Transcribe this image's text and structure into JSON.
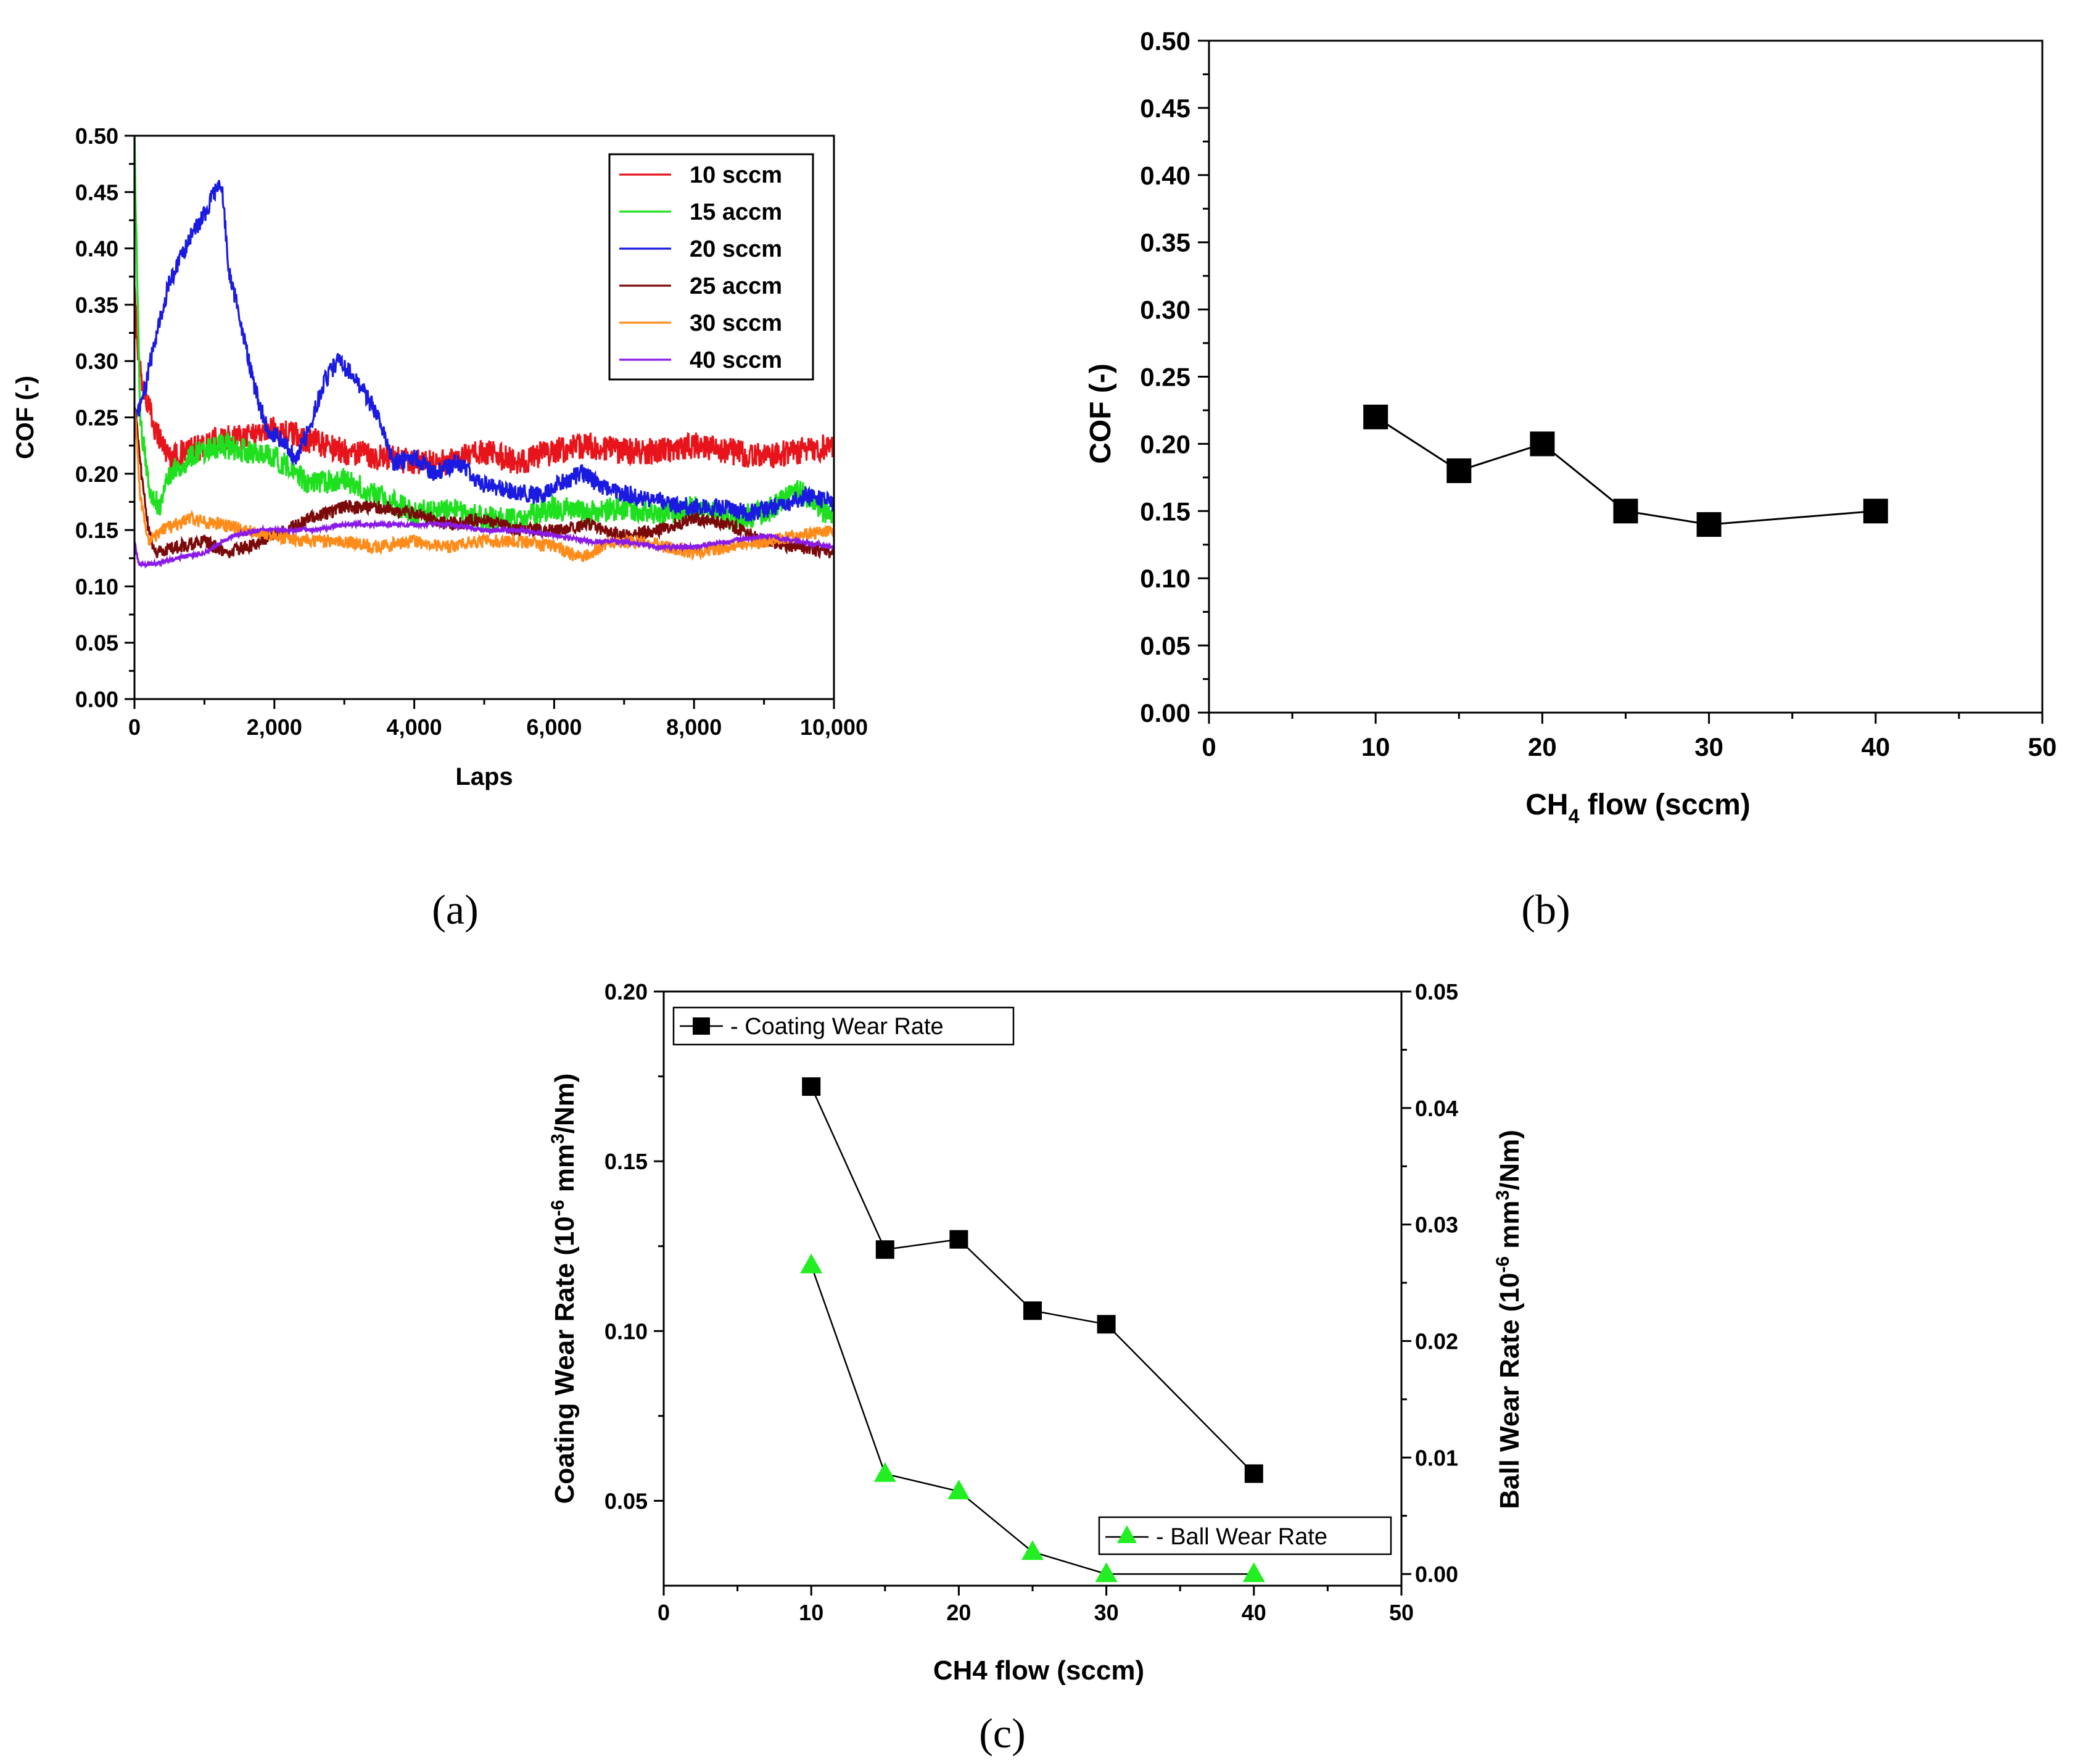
{
  "chart_data": [
    {
      "id": "a",
      "type": "line",
      "panel_label": "(a)",
      "xlabel": "Laps",
      "ylabel": "COF (-)",
      "xlim": [
        0,
        10000
      ],
      "ylim": [
        0,
        0.5
      ],
      "xticks": [
        "0",
        "2,000",
        "4,000",
        "6,000",
        "8,000",
        "10,000"
      ],
      "yticks": [
        "0.00",
        "0.05",
        "0.10",
        "0.15",
        "0.20",
        "0.25",
        "0.30",
        "0.35",
        "0.40",
        "0.45",
        "0.50"
      ],
      "legend_position": "top-right",
      "series": [
        {
          "name": "10 sccm",
          "color": "#e8141b",
          "noise": 0.012,
          "points": [
            [
              0,
              0.36
            ],
            [
              60,
              0.3
            ],
            [
              150,
              0.27
            ],
            [
              300,
              0.24
            ],
            [
              500,
              0.215
            ],
            [
              800,
              0.22
            ],
            [
              1200,
              0.23
            ],
            [
              1600,
              0.235
            ],
            [
              2000,
              0.24
            ],
            [
              2500,
              0.23
            ],
            [
              3000,
              0.22
            ],
            [
              3500,
              0.215
            ],
            [
              4000,
              0.21
            ],
            [
              4500,
              0.21
            ],
            [
              5000,
              0.22
            ],
            [
              5500,
              0.21
            ],
            [
              6000,
              0.22
            ],
            [
              6500,
              0.225
            ],
            [
              7000,
              0.22
            ],
            [
              7500,
              0.22
            ],
            [
              8000,
              0.225
            ],
            [
              8500,
              0.22
            ],
            [
              9000,
              0.215
            ],
            [
              9500,
              0.22
            ],
            [
              10000,
              0.225
            ]
          ]
        },
        {
          "name": "15 accm",
          "color": "#1ee01e",
          "noise": 0.011,
          "points": [
            [
              0,
              0.5
            ],
            [
              30,
              0.4
            ],
            [
              80,
              0.25
            ],
            [
              200,
              0.19
            ],
            [
              350,
              0.17
            ],
            [
              500,
              0.2
            ],
            [
              800,
              0.215
            ],
            [
              1200,
              0.225
            ],
            [
              1600,
              0.22
            ],
            [
              2000,
              0.215
            ],
            [
              2500,
              0.19
            ],
            [
              3000,
              0.195
            ],
            [
              3500,
              0.18
            ],
            [
              4000,
              0.165
            ],
            [
              4500,
              0.17
            ],
            [
              5000,
              0.16
            ],
            [
              5500,
              0.16
            ],
            [
              6000,
              0.17
            ],
            [
              6500,
              0.165
            ],
            [
              7000,
              0.17
            ],
            [
              7500,
              0.165
            ],
            [
              8000,
              0.17
            ],
            [
              8500,
              0.16
            ],
            [
              9000,
              0.165
            ],
            [
              9500,
              0.185
            ],
            [
              10000,
              0.16
            ]
          ]
        },
        {
          "name": "20 sccm",
          "color": "#1a1ae0",
          "noise": 0.008,
          "points": [
            [
              0,
              0.25
            ],
            [
              100,
              0.26
            ],
            [
              300,
              0.32
            ],
            [
              500,
              0.37
            ],
            [
              800,
              0.41
            ],
            [
              1000,
              0.43
            ],
            [
              1150,
              0.45
            ],
            [
              1250,
              0.455
            ],
            [
              1350,
              0.38
            ],
            [
              1500,
              0.34
            ],
            [
              1700,
              0.28
            ],
            [
              1900,
              0.24
            ],
            [
              2100,
              0.23
            ],
            [
              2300,
              0.215
            ],
            [
              2500,
              0.24
            ],
            [
              2700,
              0.28
            ],
            [
              2900,
              0.3
            ],
            [
              3100,
              0.29
            ],
            [
              3300,
              0.27
            ],
            [
              3500,
              0.25
            ],
            [
              3700,
              0.21
            ],
            [
              4000,
              0.215
            ],
            [
              4300,
              0.2
            ],
            [
              4600,
              0.21
            ],
            [
              5000,
              0.19
            ],
            [
              5400,
              0.185
            ],
            [
              5800,
              0.18
            ],
            [
              6000,
              0.19
            ],
            [
              6400,
              0.2
            ],
            [
              6800,
              0.185
            ],
            [
              7200,
              0.18
            ],
            [
              7600,
              0.175
            ],
            [
              8000,
              0.17
            ],
            [
              8400,
              0.17
            ],
            [
              8800,
              0.165
            ],
            [
              9200,
              0.17
            ],
            [
              9600,
              0.18
            ],
            [
              10000,
              0.175
            ]
          ]
        },
        {
          "name": "25 accm",
          "color": "#7a0a0a",
          "noise": 0.006,
          "points": [
            [
              0,
              0.26
            ],
            [
              100,
              0.2
            ],
            [
              200,
              0.15
            ],
            [
              300,
              0.13
            ],
            [
              600,
              0.135
            ],
            [
              1000,
              0.14
            ],
            [
              1300,
              0.13
            ],
            [
              1600,
              0.135
            ],
            [
              2000,
              0.145
            ],
            [
              2500,
              0.16
            ],
            [
              3000,
              0.17
            ],
            [
              3500,
              0.17
            ],
            [
              4000,
              0.165
            ],
            [
              4500,
              0.155
            ],
            [
              5000,
              0.16
            ],
            [
              5500,
              0.15
            ],
            [
              6000,
              0.15
            ],
            [
              6500,
              0.155
            ],
            [
              7000,
              0.145
            ],
            [
              7500,
              0.15
            ],
            [
              8000,
              0.16
            ],
            [
              8500,
              0.155
            ],
            [
              9000,
              0.14
            ],
            [
              9500,
              0.135
            ],
            [
              10000,
              0.13
            ]
          ]
        },
        {
          "name": "30 sccm",
          "color": "#ff8c1a",
          "noise": 0.006,
          "points": [
            [
              0,
              0.26
            ],
            [
              80,
              0.18
            ],
            [
              200,
              0.14
            ],
            [
              400,
              0.15
            ],
            [
              800,
              0.16
            ],
            [
              1200,
              0.155
            ],
            [
              1600,
              0.15
            ],
            [
              2000,
              0.145
            ],
            [
              2500,
              0.14
            ],
            [
              3000,
              0.14
            ],
            [
              3500,
              0.135
            ],
            [
              4000,
              0.14
            ],
            [
              4500,
              0.135
            ],
            [
              5000,
              0.14
            ],
            [
              5500,
              0.14
            ],
            [
              6000,
              0.135
            ],
            [
              6400,
              0.125
            ],
            [
              6800,
              0.14
            ],
            [
              7200,
              0.14
            ],
            [
              7600,
              0.135
            ],
            [
              8000,
              0.13
            ],
            [
              8500,
              0.135
            ],
            [
              9000,
              0.14
            ],
            [
              9500,
              0.145
            ],
            [
              10000,
              0.15
            ]
          ]
        },
        {
          "name": "40 sccm",
          "color": "#8a1ae8",
          "noise": 0.002,
          "points": [
            [
              0,
              0.14
            ],
            [
              60,
              0.12
            ],
            [
              150,
              0.12
            ],
            [
              300,
              0.12
            ],
            [
              600,
              0.125
            ],
            [
              1000,
              0.13
            ],
            [
              1400,
              0.145
            ],
            [
              1800,
              0.15
            ],
            [
              2200,
              0.15
            ],
            [
              2600,
              0.15
            ],
            [
              3000,
              0.155
            ],
            [
              3500,
              0.155
            ],
            [
              4000,
              0.155
            ],
            [
              4500,
              0.155
            ],
            [
              5000,
              0.15
            ],
            [
              5500,
              0.15
            ],
            [
              6000,
              0.145
            ],
            [
              6500,
              0.14
            ],
            [
              7000,
              0.14
            ],
            [
              7500,
              0.135
            ],
            [
              8000,
              0.135
            ],
            [
              8500,
              0.14
            ],
            [
              9000,
              0.145
            ],
            [
              9500,
              0.14
            ],
            [
              10000,
              0.135
            ]
          ]
        }
      ]
    },
    {
      "id": "b",
      "type": "line",
      "panel_label": "(b)",
      "xlabel_main": "CH",
      "xlabel_sub": "4",
      "xlabel_tail": " flow (sccm)",
      "ylabel": "COF (-)",
      "xlim": [
        0,
        50
      ],
      "ylim": [
        0,
        0.5
      ],
      "xticks": [
        "0",
        "10",
        "20",
        "30",
        "40",
        "50"
      ],
      "yticks": [
        "0.00",
        "0.05",
        "0.10",
        "0.15",
        "0.20",
        "0.25",
        "0.30",
        "0.35",
        "0.40",
        "0.45",
        "0.50"
      ],
      "series": [
        {
          "name": "COF",
          "color": "#000000",
          "marker": "square",
          "x": [
            10,
            15,
            20,
            25,
            30,
            40
          ],
          "y": [
            0.22,
            0.18,
            0.2,
            0.15,
            0.14,
            0.15
          ]
        }
      ]
    },
    {
      "id": "c",
      "type": "line",
      "panel_label": "(c)",
      "xlabel": "CH4 flow (sccm)",
      "ylabel_left_pre": "Coating Wear Rate (10",
      "ylabel_left_sup": "-6",
      "ylabel_left_mid": " mm",
      "ylabel_left_sup2": "3",
      "ylabel_left_post": "/Nm)",
      "ylabel_right_pre": "Ball Wear Rate (10",
      "ylabel_right_sup": "-6",
      "ylabel_right_mid": " mm",
      "ylabel_right_sup2": "3",
      "ylabel_right_post": "/Nm)",
      "xlim": [
        0,
        50
      ],
      "ylim_left": [
        0.025,
        0.2
      ],
      "ylim_right": [
        -0.001,
        0.05
      ],
      "xticks": [
        "0",
        "10",
        "20",
        "30",
        "40",
        "50"
      ],
      "yticks_left": [
        "0.05",
        "0.10",
        "0.15",
        "0.20"
      ],
      "yticks_right": [
        "0.00",
        "0.01",
        "0.02",
        "0.03",
        "0.04",
        "0.05"
      ],
      "series": [
        {
          "name": "Coating Wear Rate",
          "legend_label": "- Coating Wear Rate",
          "axis": "left",
          "color": "#000000",
          "marker": "square",
          "x": [
            10,
            15,
            20,
            25,
            30,
            40
          ],
          "y": [
            0.172,
            0.124,
            0.127,
            0.106,
            0.102,
            0.058
          ]
        },
        {
          "name": "Ball Wear Rate",
          "legend_label": "- Ball Wear Rate",
          "axis": "right",
          "color": "#22ee22",
          "marker": "triangle",
          "x": [
            10,
            15,
            20,
            25,
            30,
            40
          ],
          "y": [
            0.0265,
            0.0086,
            0.0071,
            0.0019,
            0.0,
            0.0
          ]
        }
      ]
    }
  ]
}
